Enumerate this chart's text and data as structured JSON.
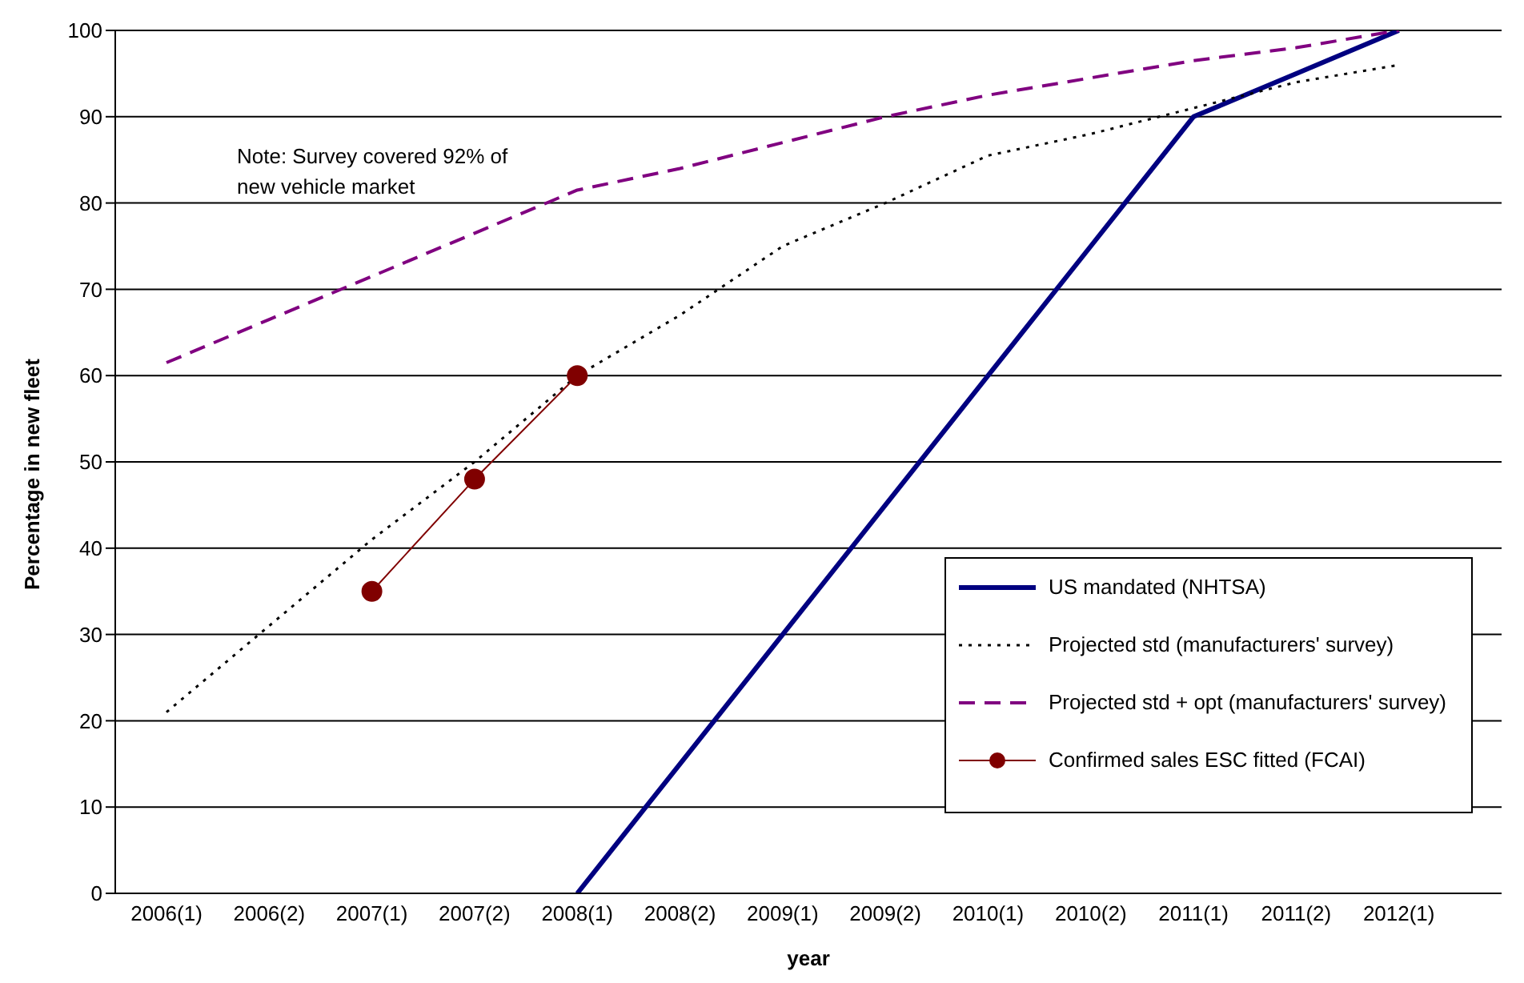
{
  "chart_data": {
    "type": "line",
    "xlabel": "year",
    "ylabel": "Percentage in new fleet",
    "categories": [
      "2006(1)",
      "2006(2)",
      "2007(1)",
      "2007(2)",
      "2008(1)",
      "2008(2)",
      "2009(1)",
      "2009(2)",
      "2010(1)",
      "2010(2)",
      "2011(1)",
      "2011(2)",
      "2012(1)",
      null
    ],
    "series": [
      {
        "name": "US mandated (NHTSA)",
        "color": "#000080",
        "line_style": "solid",
        "marker": "none",
        "values": [
          null,
          null,
          null,
          null,
          0,
          15,
          30,
          45,
          60,
          75,
          90,
          95,
          100,
          null
        ]
      },
      {
        "name": "Projected std (manufacturers' survey)",
        "color": "#000000",
        "line_style": "dotted",
        "marker": "none",
        "values": [
          21,
          31,
          41,
          50,
          60,
          67,
          75,
          80,
          85.5,
          88,
          91,
          94,
          96,
          null
        ]
      },
      {
        "name": "Projected std + opt (manufacturers' survey)",
        "color": "#800080",
        "line_style": "dashed",
        "marker": "none",
        "values": [
          61.5,
          66.5,
          71.5,
          76.5,
          81.5,
          84,
          87,
          90,
          92.5,
          94.5,
          96.5,
          98,
          100,
          null
        ]
      },
      {
        "name": "Confirmed sales ESC fitted (FCAI)",
        "color": "#800000",
        "line_style": "solid",
        "marker": "circle",
        "values": [
          null,
          null,
          35,
          48,
          60,
          null,
          null,
          null,
          null,
          null,
          null,
          null,
          null,
          null
        ]
      }
    ],
    "ylim": [
      0,
      100
    ],
    "yticks": [
      0,
      10,
      20,
      30,
      40,
      50,
      60,
      70,
      80,
      90,
      100
    ],
    "grid": "y",
    "legend": "bottom right",
    "annotations": [
      "Note: Survey covered 92% of new vehicle market"
    ]
  }
}
